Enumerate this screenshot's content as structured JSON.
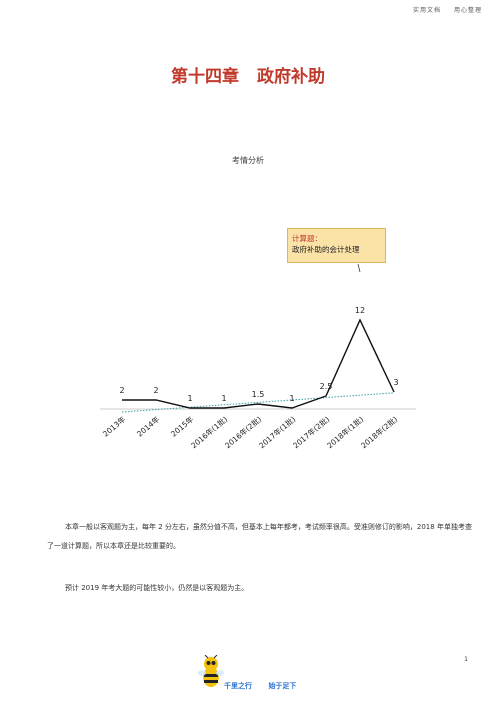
{
  "header": {
    "left": "实用文档",
    "right": "用心整理"
  },
  "title": {
    "chapter": "第十四章",
    "name": "政府补助"
  },
  "section_heading": "考情分析",
  "callout": {
    "line1": "计算题：",
    "line2": "政府补助的会计处理"
  },
  "chart_data": {
    "type": "line",
    "categories": [
      "2013年",
      "2014年",
      "2015年",
      "2016年(1批)",
      "2016年(2批)",
      "2017年(1批)",
      "2017年(2批)",
      "2018年(1批)",
      "2018年(2批)"
    ],
    "series": [
      {
        "values": [
          2,
          2,
          1,
          1,
          1.5,
          1,
          2.5,
          12,
          3
        ],
        "color": "#111111"
      },
      {
        "type": "trendline",
        "values": [
          0.5,
          0.8,
          1.1,
          1.4,
          1.7,
          2.0,
          2.3,
          2.6,
          2.9
        ],
        "color": "#3aa0a8"
      }
    ],
    "data_labels": [
      "2",
      "2",
      "1",
      "1",
      "1.5",
      "1",
      "2.5",
      "12",
      "3"
    ],
    "ylim": [
      0,
      14
    ],
    "grid": false,
    "legend": "none"
  },
  "paragraphs": [
    "本章一般以客观题为主，每年 2 分左右，虽然分值不高，但基本上每年都考，考试频率很高。受准则修订的影响，2018 年单独考查了一道计算题，所以本章还是比较重要的。",
    "预计 2019 年考大题的可能性较小，仍然是以客观题为主。"
  ],
  "page_number": "1",
  "footer": {
    "slogan_left": "千里之行",
    "slogan_right": "始于足下"
  }
}
